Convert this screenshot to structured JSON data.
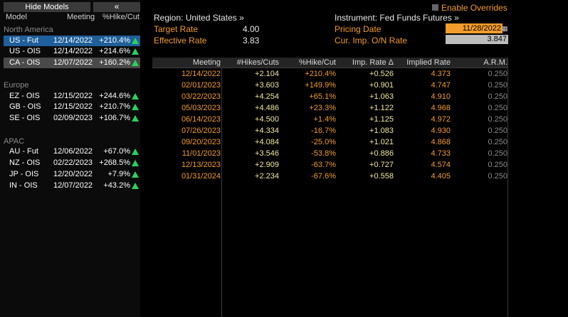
{
  "left_panel": {
    "hide_models_label": "Hide Models",
    "collapse_label": "«",
    "headers": {
      "model": "Model",
      "meeting": "Meeting",
      "hike_cut": "%Hike/Cut"
    },
    "groups": {
      "north_america": "North America",
      "europe": "Europe",
      "apac": "APAC"
    },
    "rows": [
      {
        "model": "US - Fut",
        "meeting": "12/14/2022",
        "pct": "+210.4%"
      },
      {
        "model": "US - OIS",
        "meeting": "12/14/2022",
        "pct": "+214.6%"
      },
      {
        "model": "CA - OIS",
        "meeting": "12/07/2022",
        "pct": "+160.2%"
      },
      {
        "model": "EZ - OIS",
        "meeting": "12/15/2022",
        "pct": "+244.6%"
      },
      {
        "model": "GB - OIS",
        "meeting": "12/15/2022",
        "pct": "+210.7%"
      },
      {
        "model": "SE - OIS",
        "meeting": "02/09/2023",
        "pct": "+106.7%"
      },
      {
        "model": "AU - Fut",
        "meeting": "12/06/2022",
        "pct": "+67.0%"
      },
      {
        "model": "NZ - OIS",
        "meeting": "02/22/2023",
        "pct": "+268.5%"
      },
      {
        "model": "JP - OIS",
        "meeting": "12/20/2022",
        "pct": "+7.9%"
      },
      {
        "model": "IN - OIS",
        "meeting": "12/07/2022",
        "pct": "+43.2%"
      }
    ]
  },
  "header": {
    "region": "Region: United States »",
    "instrument": "Instrument: Fed Funds Futures »",
    "enable_overrides": "Enable Overrides",
    "target_rate_label": "Target Rate",
    "target_rate_value": "4.00",
    "effective_rate_label": "Effective Rate",
    "effective_rate_value": "3.83",
    "pricing_date_label": "Pricing Date",
    "pricing_date_value": "11/28/2022",
    "cur_imp_label": "Cur. Imp. O/N Rate",
    "cur_imp_value": "3.847"
  },
  "table": {
    "headers": {
      "meeting": "Meeting",
      "hikes": "#Hikes/Cuts",
      "pct": "%Hike/Cut",
      "imp": "Imp. Rate Δ",
      "implied": "Implied Rate",
      "arm": "A.R.M."
    },
    "rows": [
      {
        "meeting": "12/14/2022",
        "hikes": "+2.104",
        "pct": "+210.4%",
        "imp": "+0.526",
        "implied": "4.373",
        "arm": "0.250"
      },
      {
        "meeting": "02/01/2023",
        "hikes": "+3.603",
        "pct": "+149.9%",
        "imp": "+0.901",
        "implied": "4.747",
        "arm": "0.250"
      },
      {
        "meeting": "03/22/2023",
        "hikes": "+4.254",
        "pct": "+65.1%",
        "imp": "+1.063",
        "implied": "4.910",
        "arm": "0.250"
      },
      {
        "meeting": "05/03/2023",
        "hikes": "+4.486",
        "pct": "+23.3%",
        "imp": "+1.122",
        "implied": "4.968",
        "arm": "0.250"
      },
      {
        "meeting": "06/14/2023",
        "hikes": "+4.500",
        "pct": "+1.4%",
        "imp": "+1.125",
        "implied": "4.972",
        "arm": "0.250"
      },
      {
        "meeting": "07/26/2023",
        "hikes": "+4.334",
        "pct": "-16.7%",
        "imp": "+1.083",
        "implied": "4.930",
        "arm": "0.250"
      },
      {
        "meeting": "09/20/2023",
        "hikes": "+4.084",
        "pct": "-25.0%",
        "imp": "+1.021",
        "implied": "4.868",
        "arm": "0.250"
      },
      {
        "meeting": "11/01/2023",
        "hikes": "+3.546",
        "pct": "-53.8%",
        "imp": "+0.886",
        "implied": "4.733",
        "arm": "0.250"
      },
      {
        "meeting": "12/13/2023",
        "hikes": "+2.909",
        "pct": "-63.7%",
        "imp": "+0.727",
        "implied": "4.574",
        "arm": "0.250"
      },
      {
        "meeting": "01/31/2024",
        "hikes": "+2.234",
        "pct": "-67.6%",
        "imp": "+0.558",
        "implied": "4.405",
        "arm": "0.250"
      }
    ]
  },
  "colors": {
    "orange": "#f39c2a",
    "yellow": "#f2e89a",
    "green": "#27d35a",
    "selected": "#1f5f9a",
    "gray": "#8a8a8a"
  }
}
